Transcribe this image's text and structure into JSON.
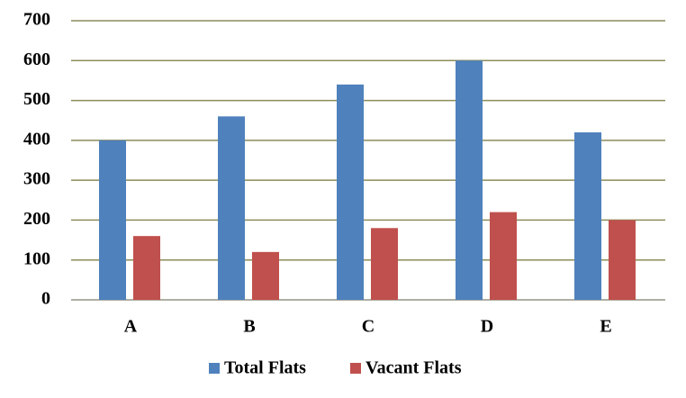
{
  "chart_data": {
    "type": "bar",
    "categories": [
      "A",
      "B",
      "C",
      "D",
      "E"
    ],
    "series": [
      {
        "name": "Total Flats",
        "color": "#4f81bd",
        "values": [
          400,
          460,
          540,
          600,
          420
        ]
      },
      {
        "name": "Vacant Flats",
        "color": "#c0504d",
        "values": [
          160,
          120,
          180,
          220,
          200
        ]
      }
    ],
    "ylim": [
      0,
      700
    ],
    "yticks": [
      0,
      100,
      200,
      300,
      400,
      500,
      600,
      700
    ],
    "grid": true,
    "legend": "bottom"
  }
}
